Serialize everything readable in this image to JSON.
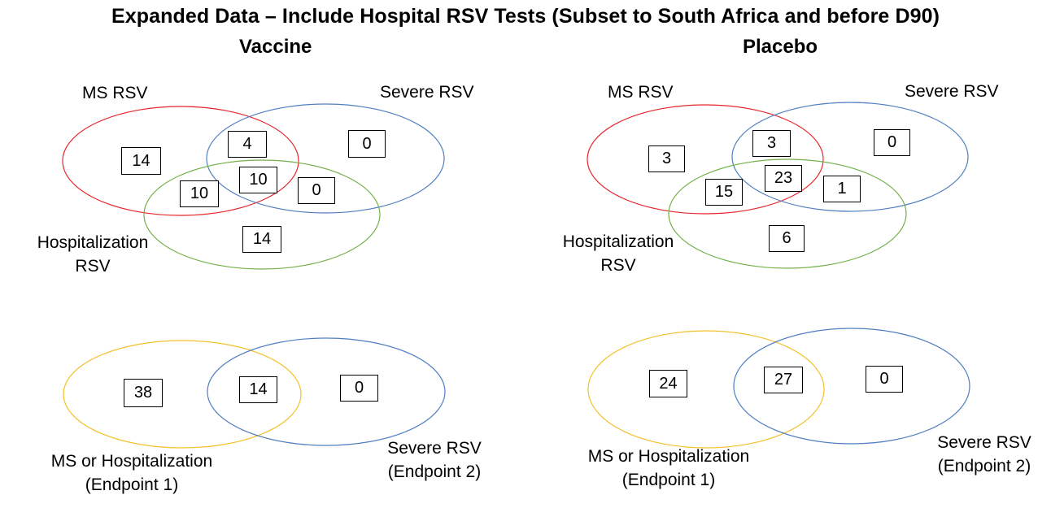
{
  "title": "Expanded Data – Include Hospital RSV Tests (Subset to South Africa and before D90)",
  "colors": {
    "red": "#e8252b",
    "blue": "#4f7ec2",
    "green": "#72b04a",
    "yellow": "#f3c12a"
  },
  "vaccine": {
    "panel_title": "Vaccine",
    "top": {
      "labels": {
        "ms_rsv": "MS RSV",
        "severe_rsv": "Severe RSV",
        "hosp_line1": "Hospitalization",
        "hosp_line2": "RSV"
      },
      "counts": {
        "ms_only": "14",
        "ms_severe": "4",
        "severe_only": "0",
        "all_three": "10",
        "ms_hosp": "10",
        "severe_hosp": "0",
        "hosp_only": "14"
      }
    },
    "bottom": {
      "labels": {
        "left_line1": "MS or Hospitalization",
        "left_line2": "(Endpoint 1)",
        "right_line1": "Severe RSV",
        "right_line2": "(Endpoint 2)"
      },
      "counts": {
        "left_only": "38",
        "overlap": "14",
        "right_only": "0"
      }
    }
  },
  "placebo": {
    "panel_title": "Placebo",
    "top": {
      "labels": {
        "ms_rsv": "MS RSV",
        "severe_rsv": "Severe RSV",
        "hosp_line1": "Hospitalization",
        "hosp_line2": "RSV"
      },
      "counts": {
        "ms_only": "3",
        "ms_severe": "3",
        "severe_only": "0",
        "all_three": "23",
        "ms_hosp": "15",
        "severe_hosp": "1",
        "hosp_only": "6"
      }
    },
    "bottom": {
      "labels": {
        "left_line1": "MS or Hospitalization",
        "left_line2": "(Endpoint 1)",
        "right_line1": "Severe RSV",
        "right_line2": "(Endpoint 2)"
      },
      "counts": {
        "left_only": "24",
        "overlap": "27",
        "right_only": "0"
      }
    }
  }
}
